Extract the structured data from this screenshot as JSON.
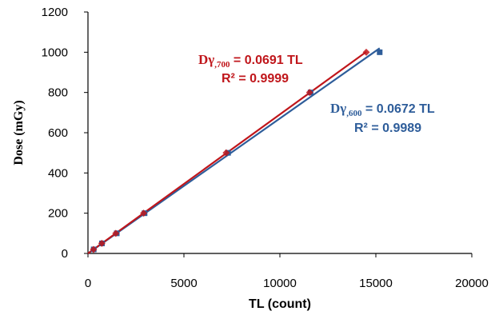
{
  "chart_data": {
    "type": "scatter",
    "xlabel": "TL (count)",
    "ylabel": "Dose (mGy)",
    "xlim": [
      0,
      20000
    ],
    "ylim": [
      0,
      1200
    ],
    "xticks": [
      "0",
      "5000",
      "10000",
      "15000",
      "20000"
    ],
    "yticks": [
      "0",
      "200",
      "400",
      "600",
      "800",
      "1000",
      "1200"
    ],
    "grid": false,
    "series": [
      {
        "color": "#2e5d9a",
        "marker": "square",
        "x": [
          300,
          730,
          1500,
          2950,
          7300,
          11600,
          15200
        ],
        "y": [
          20,
          50,
          100,
          200,
          500,
          800,
          1000
        ],
        "fit_line": {
          "x": [
            0,
            15200
          ],
          "y": [
            0,
            1020
          ]
        }
      },
      {
        "color": "#c0161b",
        "marker": "diamond",
        "x": [
          290,
          720,
          1450,
          2900,
          7200,
          11550,
          14500
        ],
        "y": [
          20,
          50,
          100,
          200,
          500,
          800,
          1000
        ],
        "fit_line": {
          "x": [
            0,
            14500
          ],
          "y": [
            0,
            1002
          ]
        }
      }
    ],
    "annotations": [
      {
        "color": "#c0161b",
        "line1_prefix": "Dγ",
        "line1_sub": ",700",
        "line1_rest": " = 0.0691 TL",
        "line2": "R² = 0.9999"
      },
      {
        "color": "#2e5d9a",
        "line1_prefix": "Dγ",
        "line1_sub": ",600",
        "line1_rest": " = 0.0672 TL",
        "line2": "R² = 0.9989"
      }
    ]
  }
}
